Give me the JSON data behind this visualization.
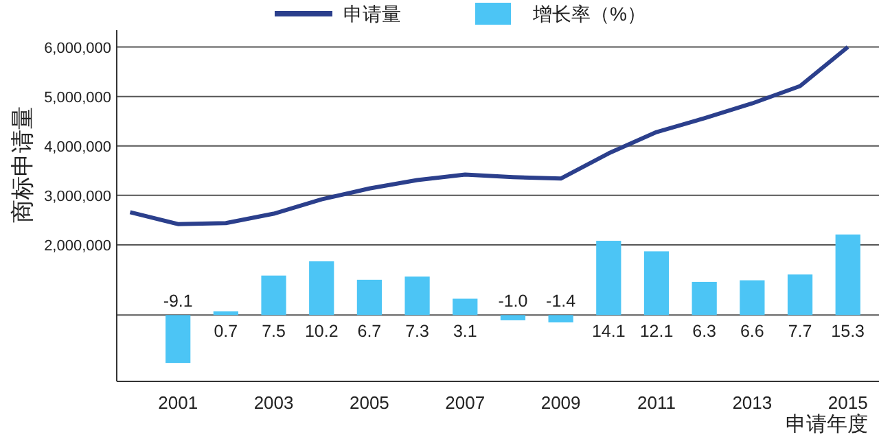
{
  "chart_data": {
    "type": "bar",
    "xlabel": "申请年度",
    "ylabel": "商标申请量",
    "xlim": [
      1999.72,
      2015.65
    ],
    "xticks": [
      2001,
      2003,
      2005,
      2007,
      2009,
      2011,
      2013,
      2015
    ],
    "ylim": [
      -760000,
      6340000
    ],
    "yticks": [
      {
        "value": 2000000,
        "label": "2,000,000"
      },
      {
        "value": 3000000,
        "label": "3,000,000"
      },
      {
        "value": 4000000,
        "label": "4,000,000"
      },
      {
        "value": 5000000,
        "label": "5,000,000"
      },
      {
        "value": 6000000,
        "label": "6,000,000"
      }
    ],
    "y2lim": [
      -12.6,
      54.1
    ],
    "grid": "y",
    "legend": "top",
    "ref_lines": [
      {
        "axis": "y2",
        "value": 0,
        "color": "#555555"
      }
    ],
    "series": [
      {
        "name": "申请量",
        "type": "line",
        "color": "#2b3f8c",
        "x": [
          2000,
          2001,
          2002,
          2003,
          2004,
          2005,
          2006,
          2007,
          2008,
          2009,
          2010,
          2011,
          2012,
          2013,
          2014,
          2015
        ],
        "values": [
          2660000,
          2420000,
          2440000,
          2630000,
          2920000,
          3140000,
          3310000,
          3420000,
          3370000,
          3340000,
          3850000,
          4280000,
          4560000,
          4860000,
          5210000,
          6000000
        ]
      },
      {
        "name": "增长率（%）",
        "axis": "y2",
        "color": "#4cc5f5",
        "x": [
          2001,
          2002,
          2003,
          2004,
          2005,
          2006,
          2007,
          2008,
          2009,
          2010,
          2011,
          2012,
          2013,
          2014,
          2015
        ],
        "values": [
          -9.1,
          0.7,
          7.5,
          10.2,
          6.7,
          7.3,
          3.1,
          -1.0,
          -1.4,
          14.1,
          12.1,
          6.3,
          6.6,
          7.7,
          15.3
        ],
        "value_labels": [
          "-9.1",
          "0.7",
          "7.5",
          "10.2",
          "6.7",
          "7.3",
          "3.1",
          "-1.0",
          "-1.4",
          "14.1",
          "12.1",
          "6.3",
          "6.6",
          "7.7",
          "15.3"
        ]
      }
    ]
  }
}
